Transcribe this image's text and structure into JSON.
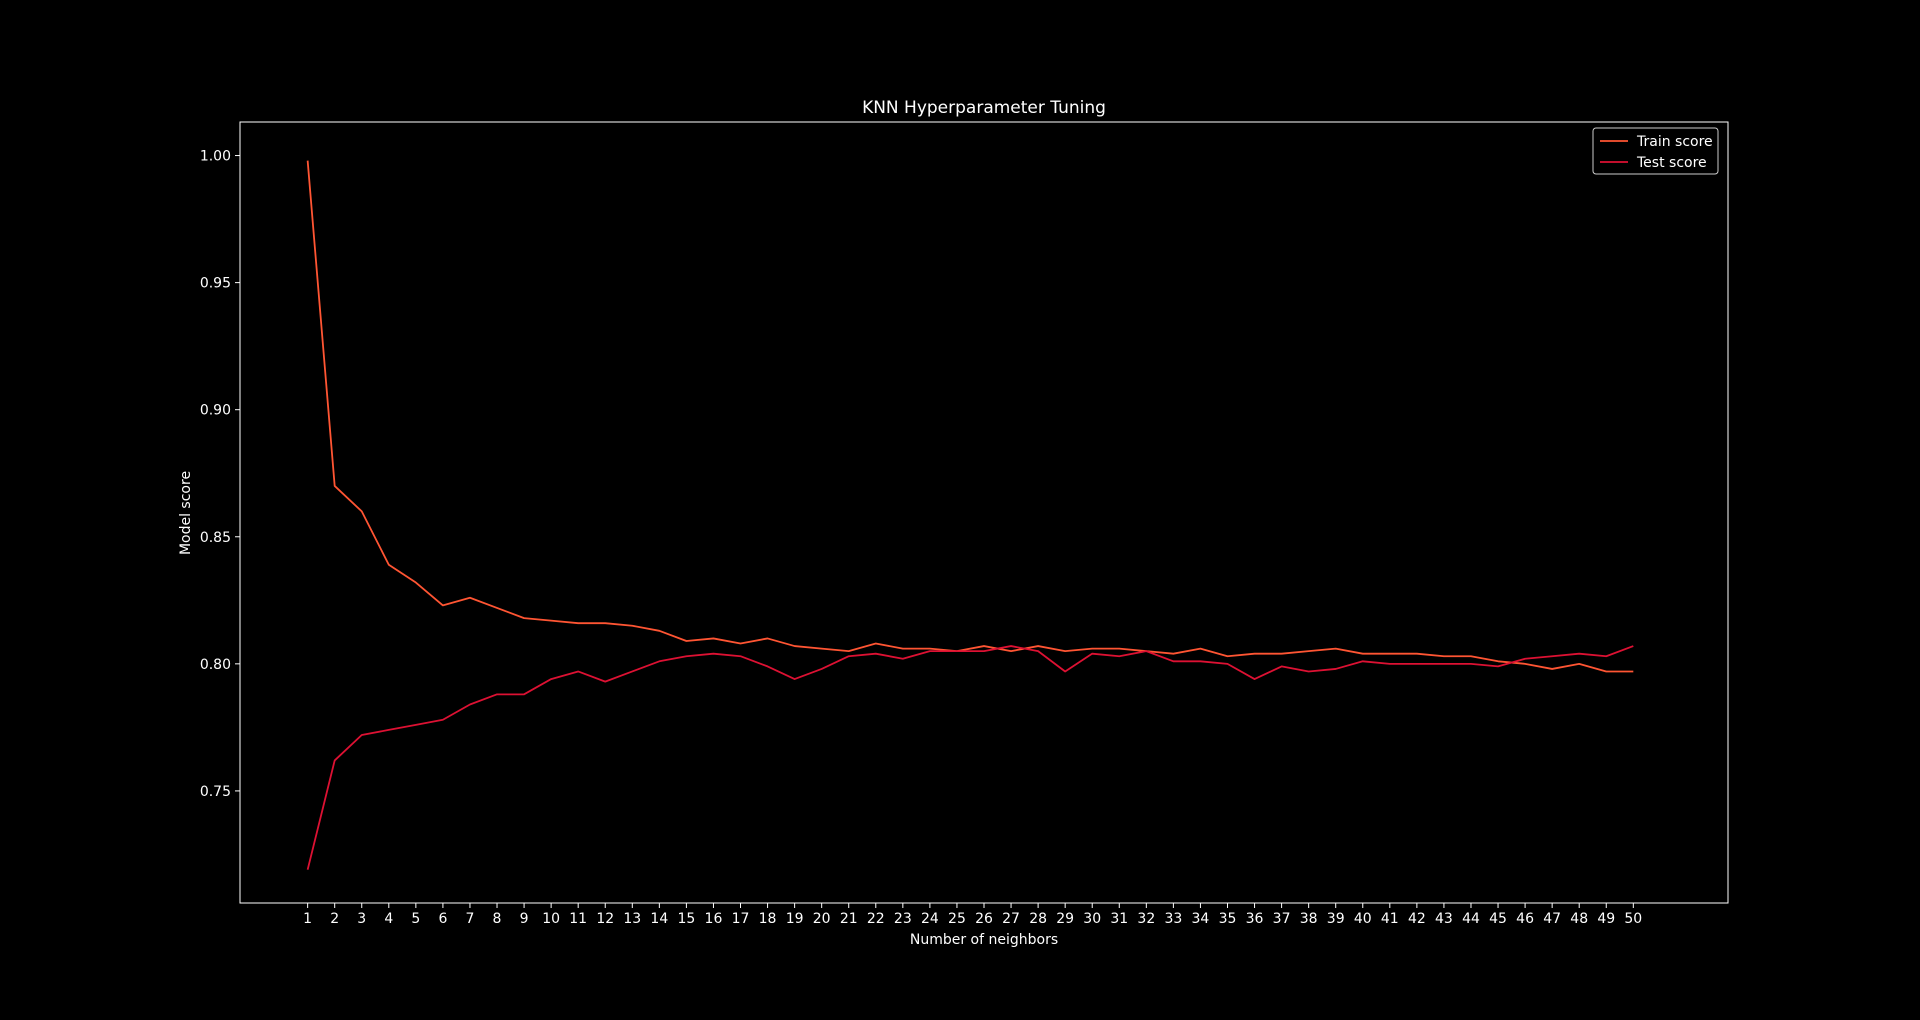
{
  "chart_data": {
    "type": "line",
    "title": "KNN Hyperparameter Tuning",
    "xlabel": "Number of neighbors",
    "ylabel": "Model score",
    "x": [
      1,
      2,
      3,
      4,
      5,
      6,
      7,
      8,
      9,
      10,
      11,
      12,
      13,
      14,
      15,
      16,
      17,
      18,
      19,
      20,
      21,
      22,
      23,
      24,
      25,
      26,
      27,
      28,
      29,
      30,
      31,
      32,
      33,
      34,
      35,
      36,
      37,
      38,
      39,
      40,
      41,
      42,
      43,
      44,
      45,
      46,
      47,
      48,
      49,
      50
    ],
    "xlim": [
      -1.5,
      53.5
    ],
    "ylim": [
      0.7059,
      1.0132
    ],
    "yticks": [
      0.75,
      0.8,
      0.85,
      0.9,
      0.95,
      1.0
    ],
    "ytick_labels": [
      "0.75",
      "0.80",
      "0.85",
      "0.90",
      "0.95",
      "1.00"
    ],
    "grid": false,
    "legend_position": "top-right",
    "series": [
      {
        "name": "Train score",
        "color": "#ff5533",
        "values": [
          0.998,
          0.87,
          0.86,
          0.839,
          0.832,
          0.823,
          0.826,
          0.822,
          0.818,
          0.817,
          0.816,
          0.816,
          0.815,
          0.813,
          0.809,
          0.81,
          0.808,
          0.81,
          0.807,
          0.806,
          0.805,
          0.808,
          0.806,
          0.806,
          0.805,
          0.807,
          0.805,
          0.807,
          0.805,
          0.806,
          0.806,
          0.805,
          0.804,
          0.806,
          0.803,
          0.804,
          0.804,
          0.805,
          0.806,
          0.804,
          0.804,
          0.804,
          0.803,
          0.803,
          0.801,
          0.8,
          0.798,
          0.8,
          0.797,
          0.797
        ]
      },
      {
        "name": "Test score",
        "color": "#dd1133",
        "values": [
          0.719,
          0.762,
          0.772,
          0.774,
          0.776,
          0.778,
          0.784,
          0.788,
          0.788,
          0.794,
          0.797,
          0.793,
          0.797,
          0.801,
          0.803,
          0.804,
          0.803,
          0.799,
          0.794,
          0.798,
          0.803,
          0.804,
          0.802,
          0.805,
          0.805,
          0.805,
          0.807,
          0.805,
          0.797,
          0.804,
          0.803,
          0.805,
          0.801,
          0.801,
          0.8,
          0.794,
          0.799,
          0.797,
          0.798,
          0.801,
          0.8,
          0.8,
          0.8,
          0.8,
          0.799,
          0.802,
          0.803,
          0.804,
          0.803,
          0.807
        ]
      }
    ]
  },
  "colors": {
    "background": "#000000",
    "axes_edge": "#ffffff",
    "text": "#ffffff"
  }
}
